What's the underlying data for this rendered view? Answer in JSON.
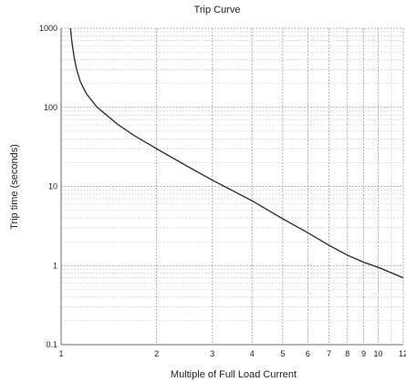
{
  "chart_data": {
    "type": "line",
    "title": "Trip Curve",
    "xlabel": "Multiple of Full Load Current",
    "ylabel": "Trip time (seconds)",
    "x_scale": "log",
    "y_scale": "log",
    "xlim": [
      1,
      12
    ],
    "ylim": [
      0.1,
      1000
    ],
    "grid": true,
    "x_ticks": [
      1,
      2,
      3,
      4,
      5,
      6,
      7,
      8,
      9,
      10,
      12
    ],
    "x_tick_labels": [
      "1",
      "2",
      "3",
      "4",
      "5",
      "6",
      "7",
      "8",
      "9",
      "10",
      "12"
    ],
    "y_ticks": [
      0.1,
      1,
      10,
      100,
      1000
    ],
    "y_tick_labels": [
      "0.1",
      "1",
      "10",
      "100",
      "1000"
    ],
    "series": [
      {
        "name": "",
        "color": "#333333",
        "x": [
          1.07,
          1.08,
          1.1,
          1.12,
          1.15,
          1.2,
          1.3,
          1.4,
          1.5,
          1.7,
          2.0,
          2.5,
          3.0,
          4.0,
          5.0,
          6.0,
          7.0,
          8.0,
          9.0,
          10.0,
          12.0
        ],
        "y": [
          1000,
          700,
          420,
          300,
          210,
          150,
          100,
          78,
          62,
          44,
          30,
          18,
          12,
          6.6,
          3.9,
          2.6,
          1.8,
          1.35,
          1.1,
          0.95,
          0.7
        ]
      }
    ]
  }
}
